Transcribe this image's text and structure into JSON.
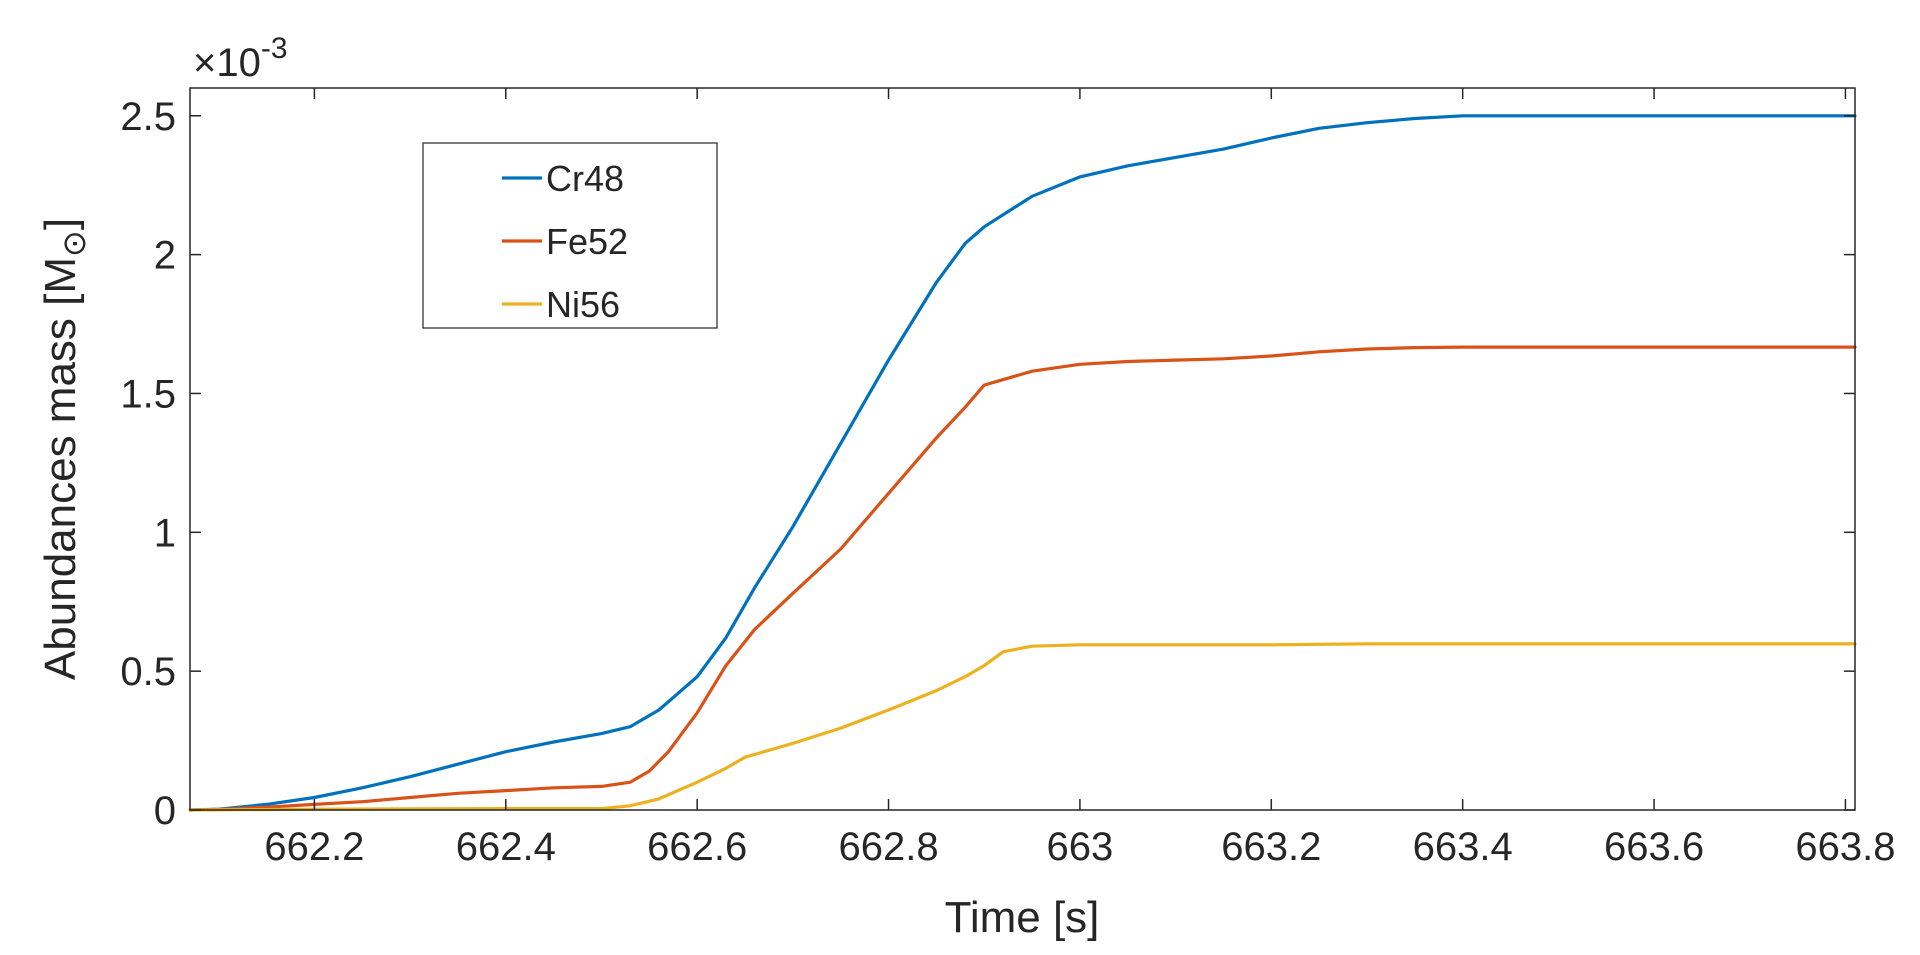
{
  "chart_data": {
    "type": "line",
    "xlabel": "Time [s]",
    "ylabel": "Abundances mass [M",
    "ylabel_subscript": "⊙",
    "ylabel_close": "]",
    "y_exponent_prefix": "×10",
    "y_exponent_power": "-3",
    "xlim": [
      662.07,
      663.81
    ],
    "ylim": [
      0,
      2.6
    ],
    "x_ticks": [
      662.2,
      662.4,
      662.6,
      662.8,
      663,
      663.2,
      663.4,
      663.6,
      663.8
    ],
    "x_tick_labels": [
      "662.2",
      "662.4",
      "662.6",
      "662.8",
      "663",
      "663.2",
      "663.4",
      "663.6",
      "663.8"
    ],
    "y_ticks": [
      0,
      0.5,
      1,
      1.5,
      2,
      2.5
    ],
    "y_tick_labels": [
      "0",
      "0.5",
      "1",
      "1.5",
      "2",
      "2.5"
    ],
    "grid": false,
    "legend_position": "top-left",
    "series": [
      {
        "name": "Cr48",
        "color": "#0072BD",
        "x": [
          662.07,
          662.1,
          662.15,
          662.2,
          662.25,
          662.3,
          662.35,
          662.4,
          662.45,
          662.5,
          662.53,
          662.56,
          662.6,
          662.63,
          662.66,
          662.7,
          662.75,
          662.8,
          662.85,
          662.88,
          662.9,
          662.95,
          663.0,
          663.05,
          663.1,
          663.15,
          663.2,
          663.25,
          663.3,
          663.35,
          663.4,
          663.5,
          663.6,
          663.7,
          663.81
        ],
        "y": [
          0.0,
          0.003,
          0.02,
          0.045,
          0.08,
          0.12,
          0.165,
          0.21,
          0.245,
          0.275,
          0.3,
          0.36,
          0.48,
          0.62,
          0.8,
          1.02,
          1.32,
          1.62,
          1.9,
          2.04,
          2.1,
          2.21,
          2.28,
          2.32,
          2.35,
          2.38,
          2.42,
          2.455,
          2.475,
          2.49,
          2.5,
          2.5,
          2.5,
          2.5,
          2.5
        ]
      },
      {
        "name": "Fe52",
        "color": "#D95319",
        "x": [
          662.07,
          662.1,
          662.15,
          662.2,
          662.25,
          662.3,
          662.35,
          662.4,
          662.45,
          662.5,
          662.53,
          662.55,
          662.57,
          662.6,
          662.63,
          662.66,
          662.7,
          662.75,
          662.8,
          662.85,
          662.88,
          662.9,
          662.95,
          663.0,
          663.05,
          663.1,
          663.15,
          663.2,
          663.25,
          663.3,
          663.35,
          663.4,
          663.5,
          663.6,
          663.7,
          663.81
        ],
        "y": [
          0.0,
          0.002,
          0.01,
          0.02,
          0.03,
          0.045,
          0.06,
          0.07,
          0.08,
          0.085,
          0.1,
          0.14,
          0.21,
          0.35,
          0.52,
          0.65,
          0.78,
          0.94,
          1.14,
          1.34,
          1.45,
          1.53,
          1.58,
          1.605,
          1.615,
          1.62,
          1.625,
          1.635,
          1.65,
          1.66,
          1.665,
          1.667,
          1.667,
          1.667,
          1.667,
          1.667
        ]
      },
      {
        "name": "Ni56",
        "color": "#EDB120",
        "x": [
          662.07,
          662.2,
          662.3,
          662.4,
          662.5,
          662.53,
          662.56,
          662.6,
          662.63,
          662.65,
          662.7,
          662.75,
          662.8,
          662.85,
          662.88,
          662.9,
          662.92,
          662.95,
          663.0,
          663.1,
          663.2,
          663.3,
          663.5,
          663.81
        ],
        "y": [
          0.0,
          0.003,
          0.004,
          0.005,
          0.005,
          0.015,
          0.04,
          0.1,
          0.15,
          0.19,
          0.24,
          0.295,
          0.36,
          0.43,
          0.48,
          0.52,
          0.57,
          0.59,
          0.595,
          0.595,
          0.595,
          0.598,
          0.598,
          0.598
        ]
      }
    ]
  }
}
